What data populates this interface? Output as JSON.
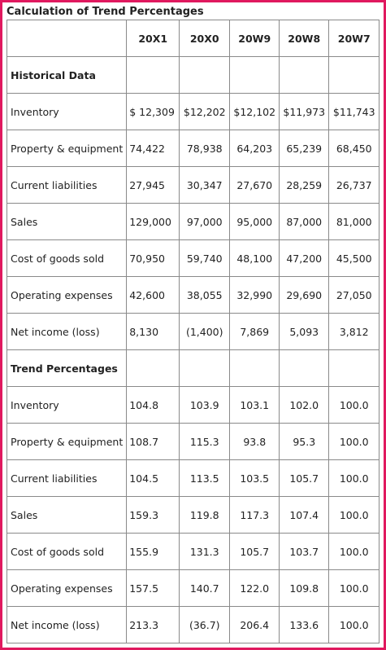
{
  "title": "Calculation of Trend Percentages",
  "table": {
    "headers": [
      "20X1",
      "20X0",
      "20W9",
      "20W8",
      "20W7"
    ],
    "sections": [
      {
        "title": "Historical Data",
        "rows": [
          {
            "label": "Inventory",
            "values": [
              "$ 12,309",
              "$12,202",
              "$12,102",
              "$11,973",
              "$11,743"
            ]
          },
          {
            "label": "Property & equipment",
            "values": [
              "74,422",
              "78,938",
              "64,203",
              "65,239",
              "68,450"
            ]
          },
          {
            "label": "Current liabilities",
            "values": [
              "27,945",
              "30,347",
              "27,670",
              "28,259",
              "26,737"
            ]
          },
          {
            "label": "Sales",
            "values": [
              "129,000",
              "97,000",
              "95,000",
              "87,000",
              "81,000"
            ]
          },
          {
            "label": "Cost of goods sold",
            "values": [
              "70,950",
              "59,740",
              "48,100",
              "47,200",
              "45,500"
            ]
          },
          {
            "label": "Operating expenses",
            "values": [
              "42,600",
              "38,055",
              "32,990",
              "29,690",
              "27,050"
            ]
          },
          {
            "label": "Net income (loss)",
            "values": [
              "8,130",
              "(1,400)",
              "7,869",
              "5,093",
              "3,812"
            ]
          }
        ]
      },
      {
        "title": "Trend Percentages",
        "rows": [
          {
            "label": "Inventory",
            "values": [
              "104.8",
              "103.9",
              "103.1",
              "102.0",
              "100.0"
            ]
          },
          {
            "label": "Property & equipment",
            "values": [
              "108.7",
              "115.3",
              "93.8",
              "95.3",
              "100.0"
            ]
          },
          {
            "label": "Current liabilities",
            "values": [
              "104.5",
              "113.5",
              "103.5",
              "105.7",
              "100.0"
            ]
          },
          {
            "label": "Sales",
            "values": [
              "159.3",
              "119.8",
              "117.3",
              "107.4",
              "100.0"
            ]
          },
          {
            "label": "Cost of goods sold",
            "values": [
              "155.9",
              "131.3",
              "105.7",
              "103.7",
              "100.0"
            ]
          },
          {
            "label": "Operating expenses",
            "values": [
              "157.5",
              "140.7",
              "122.0",
              "109.8",
              "100.0"
            ]
          },
          {
            "label": "Net income (loss)",
            "values": [
              "213.3",
              "(36.7)",
              "206.4",
              "133.6",
              "100.0"
            ]
          }
        ]
      }
    ]
  }
}
